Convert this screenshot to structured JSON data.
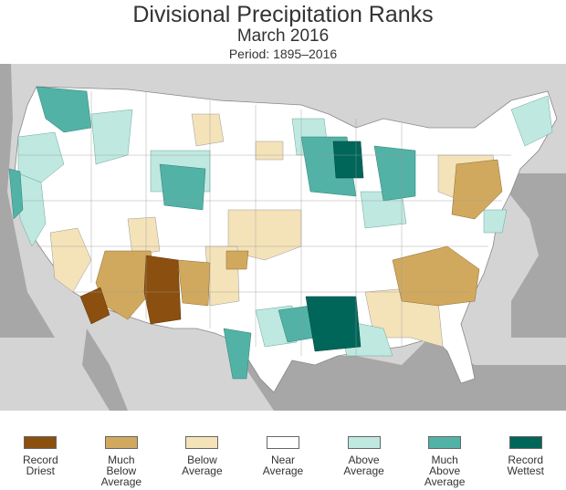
{
  "header": {
    "title": "Divisional Precipitation Ranks",
    "subtitle": "March 2016",
    "period": "Period: 1895–2016"
  },
  "legend": {
    "items": [
      {
        "lines": [
          "Record",
          "Driest"
        ],
        "color": "#8b4f0f"
      },
      {
        "lines": [
          "Much",
          "Below",
          "Average"
        ],
        "color": "#d1a95e"
      },
      {
        "lines": [
          "Below",
          "Average"
        ],
        "color": "#f4e2b9"
      },
      {
        "lines": [
          "Near",
          "Average"
        ],
        "color": "#ffffff"
      },
      {
        "lines": [
          "Above",
          "Average"
        ],
        "color": "#bfe8e0"
      },
      {
        "lines": [
          "Much",
          "Above",
          "Average"
        ],
        "color": "#52b2a6"
      },
      {
        "lines": [
          "Record",
          "Wettest"
        ],
        "color": "#00665a"
      }
    ]
  },
  "map": {
    "background_color": "#d4d4d4",
    "land_color": "#ffffff"
  }
}
